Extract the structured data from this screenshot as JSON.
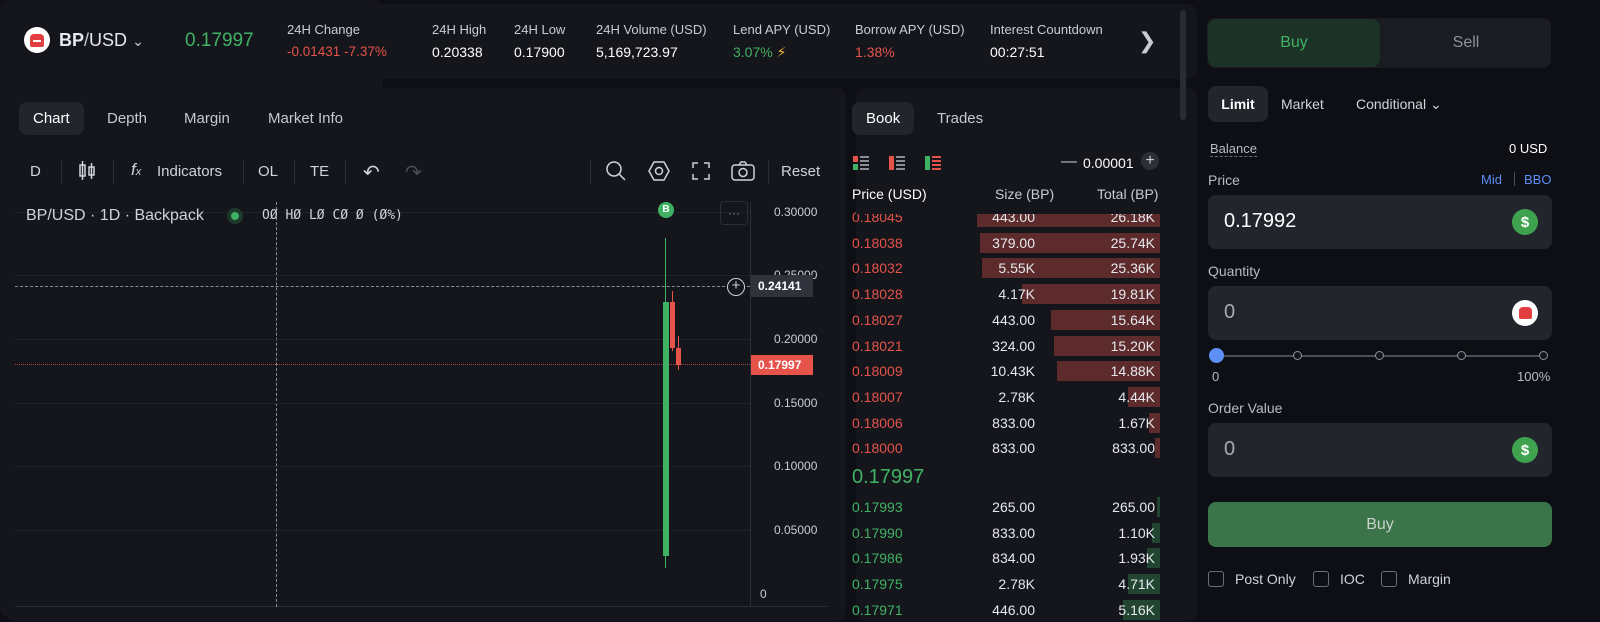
{
  "header": {
    "pair_base": "BP",
    "pair_sep": "/",
    "pair_quote": "USD",
    "last_price": "0.17997",
    "change_label": "24H Change",
    "change_abs": "-0.01431",
    "change_pct": "-7.37%",
    "high_label": "24H High",
    "high": "0.20338",
    "low_label": "24H Low",
    "low": "0.17900",
    "volume_label": "24H Volume (USD)",
    "volume": "5,169,723.97",
    "lend_label": "Lend APY (USD)",
    "lend": "3.07%",
    "borrow_label": "Borrow APY (USD)",
    "borrow": "1.38%",
    "countdown_label": "Interest Countdown",
    "countdown": "00:27:51"
  },
  "chart": {
    "tabs": [
      "Chart",
      "Depth",
      "Margin",
      "Market Info"
    ],
    "toolbar": {
      "interval": "D",
      "indicators": "Indicators",
      "ol": "OL",
      "te": "TE",
      "reset": "Reset"
    },
    "legend_title": "BP/USD · 1D · Backpack",
    "ohlc": "OØ HØ LØ CØ Ø (Ø%)",
    "marker": "B",
    "more": "···",
    "crosshair_value": "0.24141",
    "last_value": "0.17997",
    "y_ticks": [
      "0.30000",
      "0.25000",
      "0.20000",
      "0.15000",
      "0.10000",
      "0.05000",
      "0"
    ]
  },
  "book": {
    "tabs": [
      "Book",
      "Trades"
    ],
    "tick": "0.00001",
    "headers": {
      "price": "Price (USD)",
      "size": "Size (BP)",
      "total": "Total (BP)"
    },
    "asks": [
      {
        "price": "0.18045",
        "size": "443.00",
        "total": "26.18K",
        "depth": 0.69
      },
      {
        "price": "0.18038",
        "size": "379.00",
        "total": "25.74K",
        "depth": 0.68
      },
      {
        "price": "0.18032",
        "size": "5.55K",
        "total": "25.36K",
        "depth": 0.67
      },
      {
        "price": "0.18028",
        "size": "4.17K",
        "total": "19.81K",
        "depth": 0.52
      },
      {
        "price": "0.18027",
        "size": "443.00",
        "total": "15.64K",
        "depth": 0.41
      },
      {
        "price": "0.18021",
        "size": "324.00",
        "total": "15.20K",
        "depth": 0.4
      },
      {
        "price": "0.18009",
        "size": "10.43K",
        "total": "14.88K",
        "depth": 0.39
      },
      {
        "price": "0.18007",
        "size": "2.78K",
        "total": "4.44K",
        "depth": 0.12
      },
      {
        "price": "0.18006",
        "size": "833.00",
        "total": "1.67K",
        "depth": 0.04
      },
      {
        "price": "0.18000",
        "size": "833.00",
        "total": "833.00",
        "depth": 0.02
      }
    ],
    "mid": "0.17997",
    "bids": [
      {
        "price": "0.17993",
        "size": "265.00",
        "total": "265.00",
        "depth": 0.01
      },
      {
        "price": "0.17990",
        "size": "833.00",
        "total": "1.10K",
        "depth": 0.03
      },
      {
        "price": "0.17986",
        "size": "834.00",
        "total": "1.93K",
        "depth": 0.05
      },
      {
        "price": "0.17975",
        "size": "2.78K",
        "total": "4.71K",
        "depth": 0.12
      },
      {
        "price": "0.17971",
        "size": "446.00",
        "total": "5.16K",
        "depth": 0.14
      }
    ]
  },
  "order": {
    "buy": "Buy",
    "sell": "Sell",
    "types": [
      "Limit",
      "Market",
      "Conditional"
    ],
    "balance_label": "Balance",
    "balance": "0 USD",
    "price_label": "Price",
    "mid": "Mid",
    "bbo": "BBO",
    "price": "0.17992",
    "qty_label": "Quantity",
    "qty": "0",
    "slider_min": "0",
    "slider_max": "100%",
    "slider_value": 0,
    "value_label": "Order Value",
    "value": "0",
    "submit": "Buy",
    "options": [
      "Post Only",
      "IOC",
      "Margin"
    ],
    "colors": {
      "buy": "#3f7d4f",
      "ask": "#e5534b",
      "bid": "#3fb264"
    }
  }
}
